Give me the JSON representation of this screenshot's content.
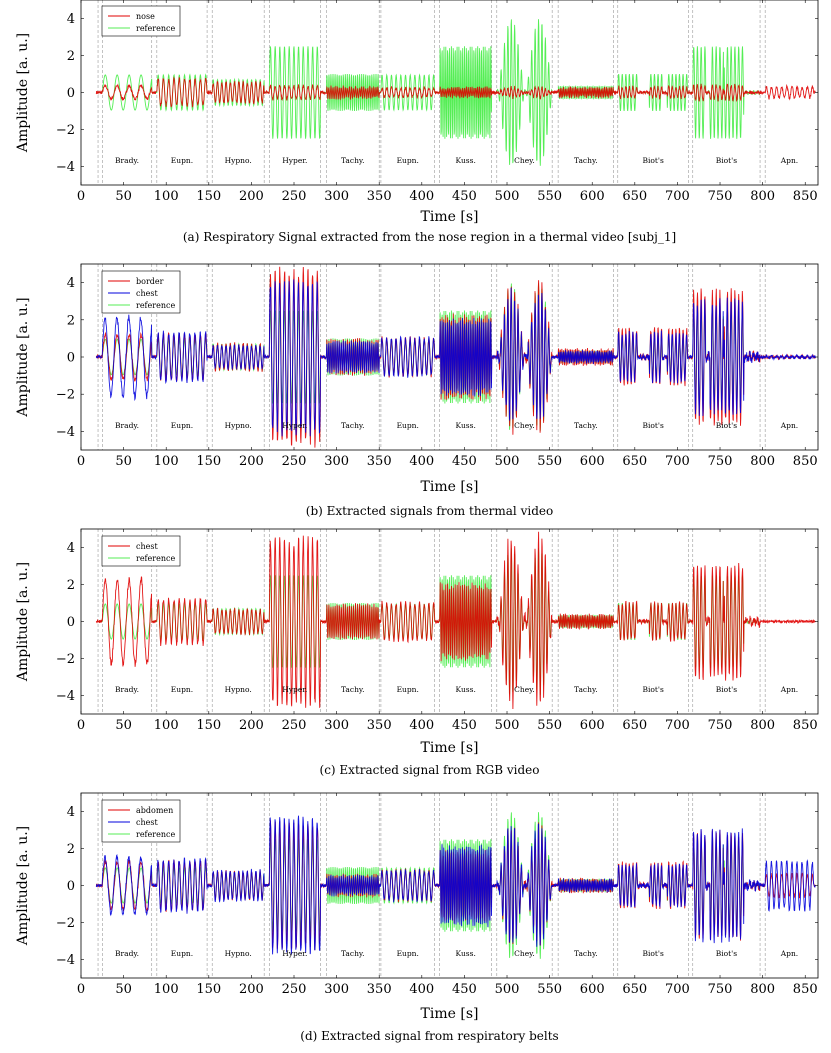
{
  "figure": {
    "colors": {
      "red": "#e00000",
      "blue": "#0000dd",
      "green": "#55ee55",
      "overlap": "#8a7d00",
      "overlap_blue": "#1a7a8a",
      "grid": "#999999"
    },
    "segment_boundaries": [
      20,
      25,
      83,
      89,
      148,
      154,
      215,
      221,
      281,
      288,
      350,
      352,
      415,
      421,
      482,
      488,
      553,
      560,
      625,
      630,
      713,
      718,
      797,
      803
    ],
    "segments": [
      {
        "label": "Brady.",
        "start": 25,
        "end": 83
      },
      {
        "label": "Eupn.",
        "start": 89,
        "end": 148
      },
      {
        "label": "Hypno.",
        "start": 154,
        "end": 215
      },
      {
        "label": "Hyper.",
        "start": 221,
        "end": 281
      },
      {
        "label": "Tachy.",
        "start": 288,
        "end": 350
      },
      {
        "label": "Eupn.",
        "start": 352,
        "end": 415
      },
      {
        "label": "Kuss.",
        "start": 421,
        "end": 482
      },
      {
        "label": "Chey.",
        "start": 488,
        "end": 553
      },
      {
        "label": "Tachy.",
        "start": 560,
        "end": 625
      },
      {
        "label": "Biot's",
        "start": 630,
        "end": 713
      },
      {
        "label": "Biot's",
        "start": 718,
        "end": 797
      },
      {
        "label": "Apn.",
        "start": 803,
        "end": 860
      }
    ]
  },
  "chart_data": [
    {
      "type": "line",
      "caption": "(a) Respiratory Signal extracted from the nose region in a thermal video [subj_1]",
      "xlabel": "Time [s]",
      "ylabel": "Amplitude [a. u.]",
      "xlim": [
        0,
        865
      ],
      "ylim": [
        -5,
        5
      ],
      "xticks": [
        0,
        50,
        100,
        150,
        200,
        250,
        300,
        350,
        400,
        450,
        500,
        550,
        600,
        650,
        700,
        750,
        800,
        850
      ],
      "yticks": [
        -4,
        -2,
        0,
        2,
        4
      ],
      "legend_position": "top-left",
      "series": [
        {
          "name": "nose",
          "color": "red",
          "amps": [
            0.35,
            0.7,
            0.55,
            0.35,
            0.3,
            0.25,
            0.25,
            0.3,
            0.25,
            0.3,
            0.4,
            0.3
          ]
        },
        {
          "name": "reference",
          "color": "green",
          "amps": [
            0.95,
            0.95,
            0.7,
            2.5,
            1.0,
            0.95,
            2.5,
            4.0,
            0.35,
            1.0,
            2.5,
            0.0
          ]
        }
      ]
    },
    {
      "type": "line",
      "caption": "(b) Extracted signals from thermal video",
      "xlabel": "Time [s]",
      "ylabel": "Amplitude [a. u.]",
      "xlim": [
        0,
        865
      ],
      "ylim": [
        -5,
        5
      ],
      "xticks": [
        0,
        50,
        100,
        150,
        200,
        250,
        300,
        350,
        400,
        450,
        500,
        550,
        600,
        650,
        700,
        750,
        800,
        850
      ],
      "yticks": [
        -4,
        -2,
        0,
        2,
        4
      ],
      "legend_position": "top-left",
      "series": [
        {
          "name": "border",
          "color": "red",
          "amps": [
            1.2,
            1.2,
            0.7,
            4.6,
            0.9,
            1.0,
            2.2,
            4.0,
            0.4,
            1.5,
            3.5,
            0.05
          ]
        },
        {
          "name": "chest",
          "color": "blue",
          "amps": [
            2.1,
            1.3,
            0.6,
            4.0,
            0.8,
            1.0,
            2.0,
            3.5,
            0.3,
            1.3,
            3.0,
            0.05
          ]
        },
        {
          "name": "reference",
          "color": "green",
          "amps": [
            0.95,
            0.95,
            0.7,
            2.5,
            1.0,
            0.95,
            2.5,
            4.0,
            0.35,
            1.0,
            2.5,
            0.0
          ]
        }
      ]
    },
    {
      "type": "line",
      "caption": "(c) Extracted signal from RGB video",
      "xlabel": "Time [s]",
      "ylabel": "Amplitude [a. u.]",
      "xlim": [
        0,
        865
      ],
      "ylim": [
        -5,
        5
      ],
      "xticks": [
        0,
        50,
        100,
        150,
        200,
        250,
        300,
        350,
        400,
        450,
        500,
        550,
        600,
        650,
        700,
        750,
        800,
        850
      ],
      "yticks": [
        -4,
        -2,
        0,
        2,
        4
      ],
      "legend_position": "top-left",
      "series": [
        {
          "name": "chest",
          "color": "red",
          "amps": [
            2.3,
            1.2,
            0.65,
            4.4,
            0.9,
            1.0,
            2.0,
            4.6,
            0.35,
            1.0,
            3.0,
            0.0
          ]
        },
        {
          "name": "reference",
          "color": "green",
          "amps": [
            0.95,
            0.95,
            0.7,
            2.5,
            1.0,
            0.95,
            2.5,
            4.0,
            0.35,
            1.0,
            2.5,
            0.0
          ]
        }
      ]
    },
    {
      "type": "line",
      "caption": "(d) Extracted signal from respiratory belts",
      "xlabel": "Time [s]",
      "ylabel": "Amplitude [a. u.]",
      "xlim": [
        0,
        865
      ],
      "ylim": [
        -5,
        5
      ],
      "xticks": [
        0,
        50,
        100,
        150,
        200,
        250,
        300,
        350,
        400,
        450,
        500,
        550,
        600,
        650,
        700,
        750,
        800,
        850
      ],
      "yticks": [
        -4,
        -2,
        0,
        2,
        4
      ],
      "legend_position": "top-left",
      "series": [
        {
          "name": "abdomen",
          "color": "red",
          "amps": [
            1.3,
            1.3,
            0.75,
            3.3,
            0.55,
            0.8,
            1.9,
            3.2,
            0.35,
            1.2,
            2.8,
            0.6
          ]
        },
        {
          "name": "chest",
          "color": "blue",
          "amps": [
            1.5,
            1.4,
            0.8,
            3.6,
            0.5,
            0.8,
            2.1,
            3.3,
            0.3,
            1.1,
            2.9,
            1.3
          ]
        },
        {
          "name": "reference",
          "color": "green",
          "amps": [
            0.95,
            0.95,
            0.7,
            2.5,
            1.0,
            0.95,
            2.5,
            4.0,
            0.35,
            1.0,
            2.5,
            0.0
          ]
        }
      ]
    }
  ]
}
